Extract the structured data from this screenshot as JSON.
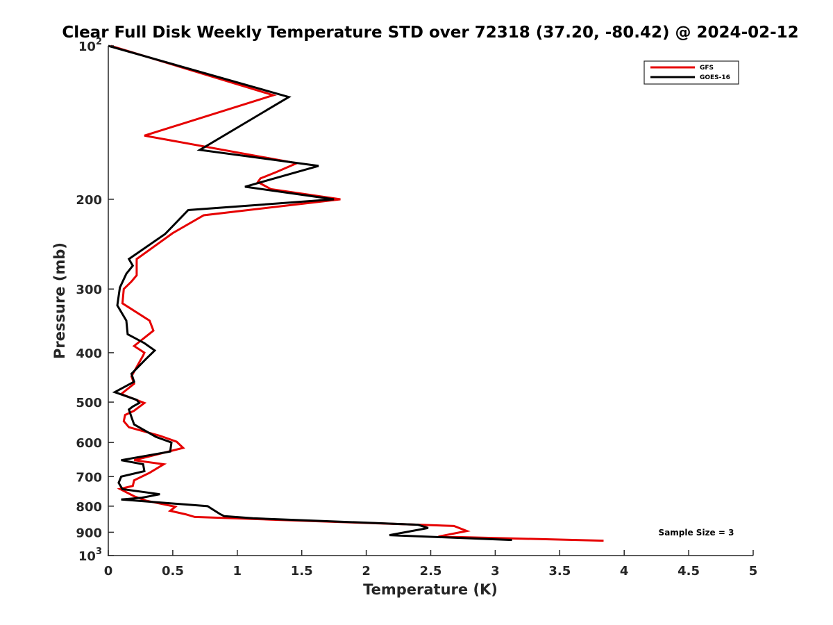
{
  "chart_data": {
    "type": "line",
    "title": "Clear Full Disk Weekly Temperature STD over 72318 (37.20, -80.42) @ 2024-02-12",
    "xlabel": "Temperature (K)",
    "ylabel": "Pressure (mb)",
    "xlim": [
      0,
      5
    ],
    "ylim": [
      100,
      1000
    ],
    "y_scale": "log",
    "y_reversed": true,
    "grid": false,
    "legend_position": "top-right",
    "x_ticks": [
      {
        "value": 0,
        "label": "0"
      },
      {
        "value": 0.5,
        "label": "0.5"
      },
      {
        "value": 1,
        "label": "1"
      },
      {
        "value": 1.5,
        "label": "1.5"
      },
      {
        "value": 2,
        "label": "2"
      },
      {
        "value": 2.5,
        "label": "2.5"
      },
      {
        "value": 3,
        "label": "3"
      },
      {
        "value": 3.5,
        "label": "3.5"
      },
      {
        "value": 4,
        "label": "4"
      },
      {
        "value": 4.5,
        "label": "4.5"
      },
      {
        "value": 5,
        "label": "5"
      }
    ],
    "y_ticks": [
      {
        "value": 100,
        "base": "10",
        "exp": "2"
      },
      {
        "value": 200,
        "label": "200"
      },
      {
        "value": 300,
        "label": "300"
      },
      {
        "value": 400,
        "label": "400"
      },
      {
        "value": 500,
        "label": "500"
      },
      {
        "value": 600,
        "label": "600"
      },
      {
        "value": 700,
        "label": "700"
      },
      {
        "value": 800,
        "label": "800"
      },
      {
        "value": 900,
        "label": "900"
      },
      {
        "value": 1000,
        "base": "10",
        "exp": "3"
      }
    ],
    "annotation": "Sample Size = 3",
    "series": [
      {
        "name": "GFS",
        "color": "#e60000",
        "points": [
          [
            0.02,
            100
          ],
          [
            1.28,
            125
          ],
          [
            0.28,
            150
          ],
          [
            1.46,
            170
          ],
          [
            1.3,
            177
          ],
          [
            1.18,
            182
          ],
          [
            1.16,
            185
          ],
          [
            1.26,
            191
          ],
          [
            1.8,
            200
          ],
          [
            0.74,
            215
          ],
          [
            0.5,
            233
          ],
          [
            0.22,
            262
          ],
          [
            0.22,
            282
          ],
          [
            0.18,
            290
          ],
          [
            0.12,
            300
          ],
          [
            0.11,
            320
          ],
          [
            0.32,
            346
          ],
          [
            0.35,
            362
          ],
          [
            0.2,
            388
          ],
          [
            0.28,
            400
          ],
          [
            0.27,
            405
          ],
          [
            0.18,
            445
          ],
          [
            0.2,
            460
          ],
          [
            0.1,
            482
          ],
          [
            0.28,
            502
          ],
          [
            0.2,
            520
          ],
          [
            0.13,
            530
          ],
          [
            0.12,
            545
          ],
          [
            0.16,
            560
          ],
          [
            0.4,
            582
          ],
          [
            0.53,
            598
          ],
          [
            0.58,
            615
          ],
          [
            0.2,
            650
          ],
          [
            0.43,
            662
          ],
          [
            0.32,
            688
          ],
          [
            0.2,
            712
          ],
          [
            0.19,
            730
          ],
          [
            0.09,
            740
          ],
          [
            0.2,
            765
          ],
          [
            0.29,
            780
          ],
          [
            0.52,
            802
          ],
          [
            0.48,
            817
          ],
          [
            0.6,
            830
          ],
          [
            0.67,
            840
          ],
          [
            1.26,
            850
          ],
          [
            2.68,
            875
          ],
          [
            2.78,
            895
          ],
          [
            2.56,
            918
          ],
          [
            3.84,
            935
          ]
        ]
      },
      {
        "name": "GOES-16",
        "color": "#000000",
        "points": [
          [
            0.0,
            100
          ],
          [
            1.4,
            126
          ],
          [
            0.71,
            160
          ],
          [
            1.63,
            172
          ],
          [
            1.06,
            189
          ],
          [
            1.75,
            200
          ],
          [
            0.62,
            210
          ],
          [
            0.44,
            234
          ],
          [
            0.16,
            262
          ],
          [
            0.19,
            270
          ],
          [
            0.14,
            280
          ],
          [
            0.09,
            298
          ],
          [
            0.07,
            323
          ],
          [
            0.14,
            346
          ],
          [
            0.15,
            368
          ],
          [
            0.28,
            383
          ],
          [
            0.36,
            396
          ],
          [
            0.29,
            412
          ],
          [
            0.18,
            440
          ],
          [
            0.2,
            456
          ],
          [
            0.05,
            478
          ],
          [
            0.22,
            495
          ],
          [
            0.24,
            502
          ],
          [
            0.19,
            510
          ],
          [
            0.16,
            517
          ],
          [
            0.18,
            535
          ],
          [
            0.2,
            553
          ],
          [
            0.37,
            585
          ],
          [
            0.49,
            600
          ],
          [
            0.48,
            625
          ],
          [
            0.1,
            650
          ],
          [
            0.27,
            662
          ],
          [
            0.28,
            683
          ],
          [
            0.1,
            700
          ],
          [
            0.08,
            720
          ],
          [
            0.11,
            741
          ],
          [
            0.4,
            758
          ],
          [
            0.26,
            770
          ],
          [
            0.1,
            776
          ],
          [
            0.77,
            800
          ],
          [
            0.81,
            812
          ],
          [
            0.87,
            830
          ],
          [
            0.9,
            837
          ],
          [
            1.12,
            845
          ],
          [
            2.4,
            870
          ],
          [
            2.48,
            883
          ],
          [
            2.18,
            912
          ],
          [
            3.13,
            932
          ]
        ]
      }
    ]
  }
}
